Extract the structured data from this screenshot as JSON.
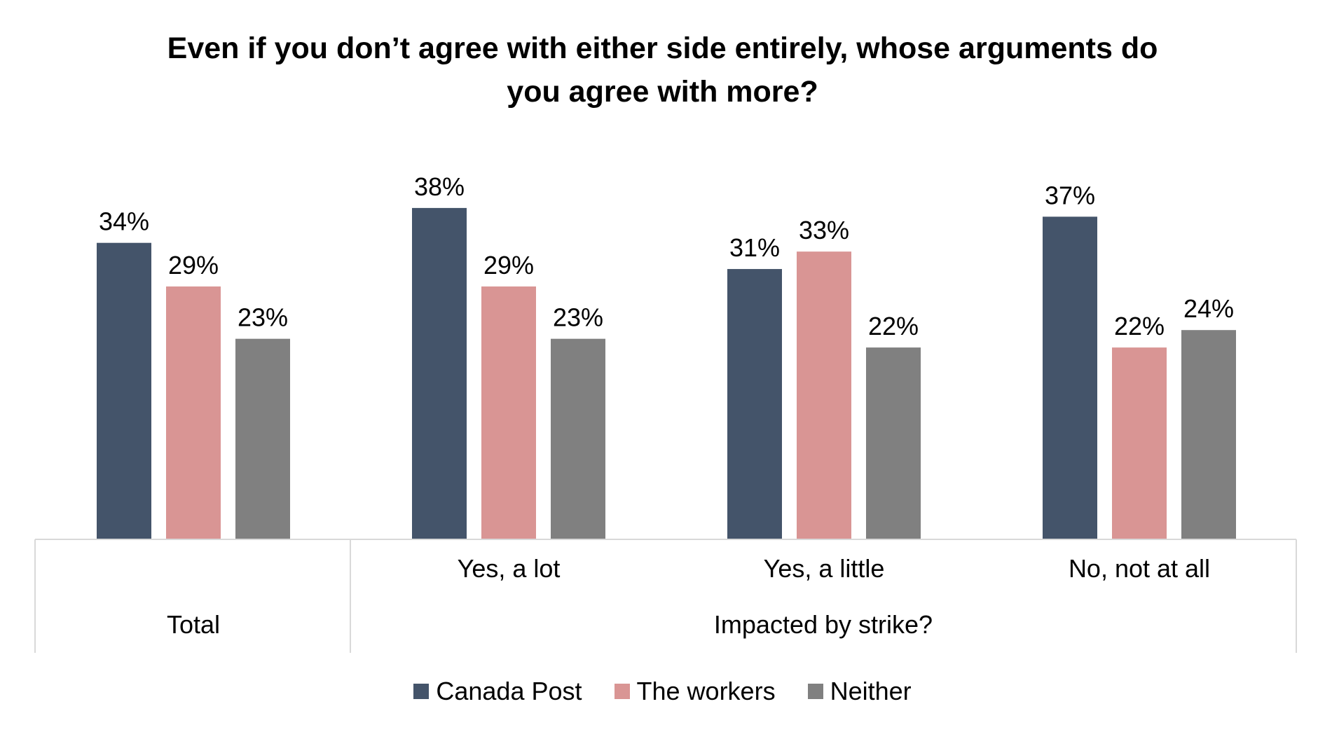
{
  "chart_data": {
    "type": "bar",
    "title_lines": [
      "Even if you don’t agree with either side entirely, whose arguments do",
      "you agree with more?"
    ],
    "categories": [
      "Total",
      "Yes, a lot",
      "Yes, a little",
      "No, not at all"
    ],
    "group_label": "Impacted by strike?",
    "series": [
      {
        "name": "Canada Post",
        "color": "#44546A",
        "values": [
          34,
          38,
          31,
          37
        ],
        "labels": [
          "34%",
          "38%",
          "31%",
          "37%"
        ]
      },
      {
        "name": "The workers",
        "color": "#D99594",
        "values": [
          29,
          29,
          33,
          22
        ],
        "labels": [
          "29%",
          "29%",
          "33%",
          "22%"
        ]
      },
      {
        "name": "Neither",
        "color": "#808080",
        "values": [
          23,
          23,
          22,
          24
        ],
        "labels": [
          "23%",
          "23%",
          "22%",
          "24%"
        ]
      }
    ],
    "ylim": [
      0,
      40
    ],
    "grid": false,
    "legend_position": "bottom"
  }
}
